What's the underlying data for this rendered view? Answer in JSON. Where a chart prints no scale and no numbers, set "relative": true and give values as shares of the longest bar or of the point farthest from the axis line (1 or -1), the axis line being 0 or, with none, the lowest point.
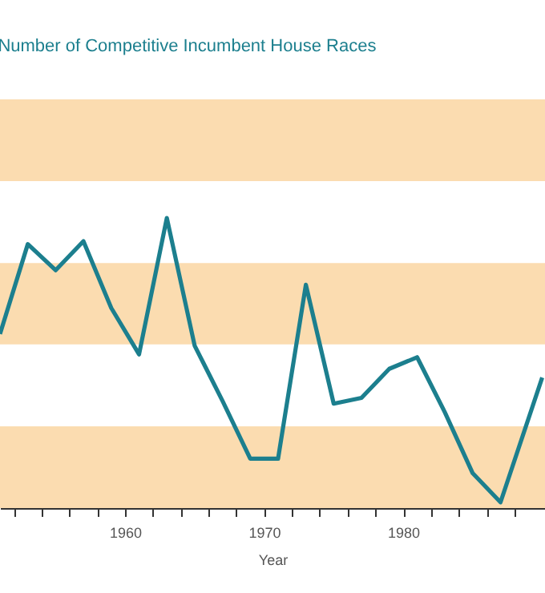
{
  "chart_data": {
    "type": "line",
    "title": "Number of Competitive Incumbent House Races",
    "xlabel": "Year",
    "relative": true,
    "x": [
      1951,
      1953,
      1955,
      1957,
      1959,
      1961,
      1963,
      1965,
      1967,
      1969,
      1971,
      1973,
      1975,
      1977,
      1979,
      1981,
      1983,
      1985,
      1987,
      1990
    ],
    "series": [
      {
        "color": "#1c7f8e",
        "values": [
          0.6,
          0.91,
          0.82,
          0.92,
          0.69,
          0.53,
          1,
          0.56,
          0.37,
          0.17,
          0.17,
          0.77,
          0.36,
          0.38,
          0.48,
          0.52,
          0.33,
          0.12,
          0.02,
          0.45
        ]
      }
    ],
    "xlim": [
      1951,
      1990.2
    ],
    "xticks": [
      {
        "value": 1952,
        "label": null
      },
      {
        "value": 1954,
        "label": null
      },
      {
        "value": 1956,
        "label": null
      },
      {
        "value": 1958,
        "label": null
      },
      1960,
      {
        "value": 1962,
        "label": null
      },
      {
        "value": 1964,
        "label": null
      },
      {
        "value": 1966,
        "label": null
      },
      {
        "value": 1968,
        "label": null
      },
      1970,
      {
        "value": 1972,
        "label": null
      },
      {
        "value": 1974,
        "label": null
      },
      {
        "value": 1976,
        "label": null
      },
      {
        "value": 1978,
        "label": null
      },
      1980,
      {
        "value": 1982,
        "label": null
      },
      {
        "value": 1984,
        "label": null
      },
      {
        "value": 1986,
        "label": null
      },
      {
        "value": 1988,
        "label": null
      }
    ],
    "bands": [
      {
        "axis": "y",
        "from": 0,
        "to": 0.282,
        "color": "#fbdcb0"
      },
      {
        "axis": "y",
        "from": 0.564,
        "to": 0.845,
        "color": "#fbdcb0"
      },
      {
        "axis": "y",
        "from": 1.127,
        "to": 1.409,
        "color": "#fbdcb0"
      }
    ],
    "marker": "none",
    "line_style": "solid",
    "grid": false
  }
}
